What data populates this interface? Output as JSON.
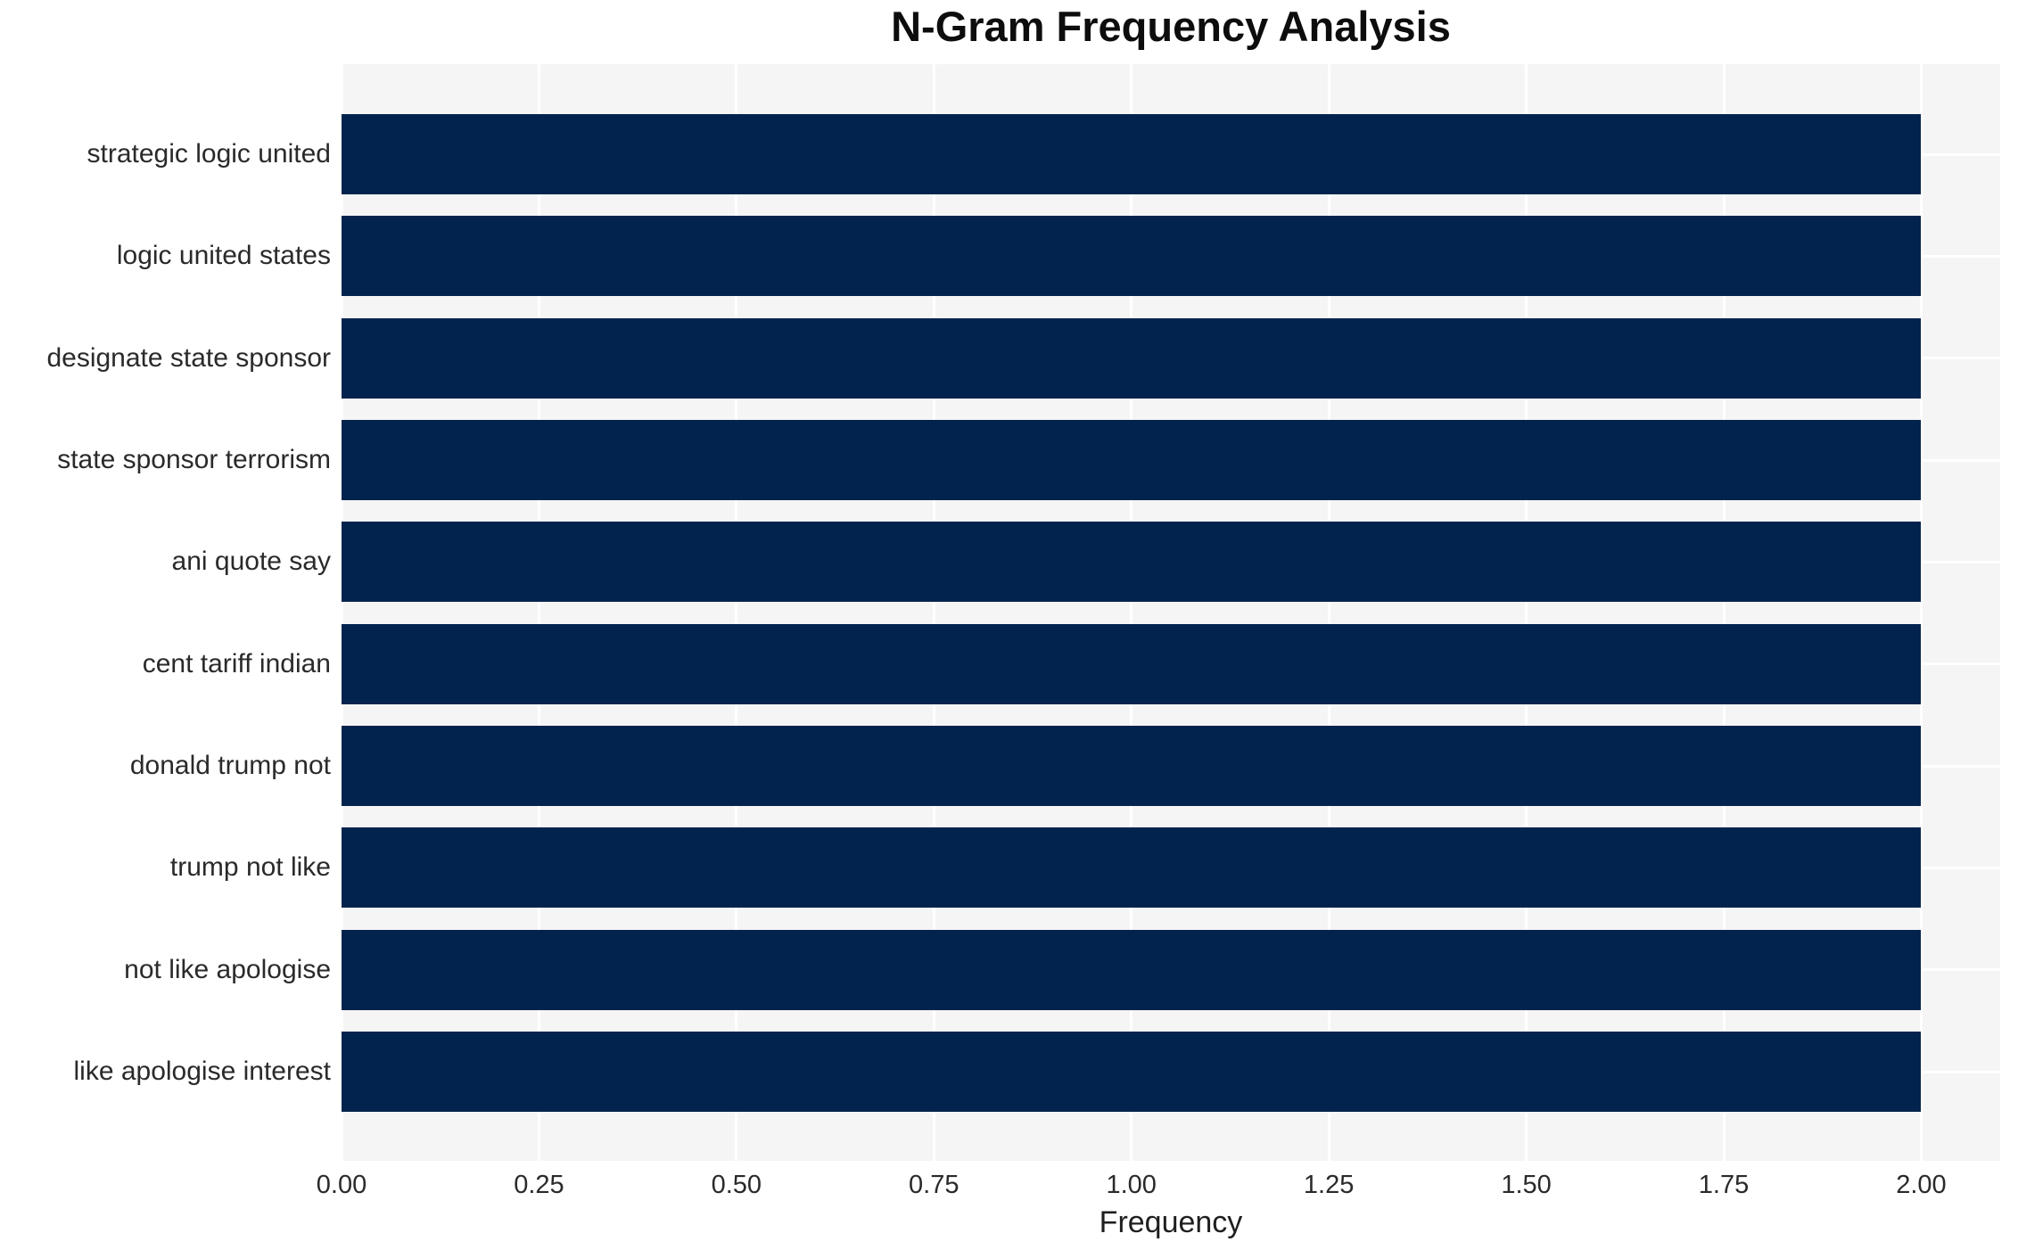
{
  "chart_data": {
    "type": "bar",
    "orientation": "horizontal",
    "title": "N-Gram Frequency Analysis",
    "xlabel": "Frequency",
    "ylabel": "",
    "categories": [
      "strategic logic united",
      "logic united states",
      "designate state sponsor",
      "state sponsor terrorism",
      "ani quote say",
      "cent tariff indian",
      "donald trump not",
      "trump not like",
      "not like apologise",
      "like apologise interest"
    ],
    "values": [
      2,
      2,
      2,
      2,
      2,
      2,
      2,
      2,
      2,
      2
    ],
    "xlim": [
      0,
      2.1
    ],
    "xtick_values": [
      0,
      0.25,
      0.5,
      0.75,
      1.0,
      1.25,
      1.5,
      1.75,
      2.0
    ],
    "xtick_labels": [
      "0.00",
      "0.25",
      "0.50",
      "0.75",
      "1.00",
      "1.25",
      "1.50",
      "1.75",
      "2.00"
    ],
    "legend": "none",
    "grid": {
      "vertical": "at each x tick",
      "horizontal": "at each category center",
      "color": "#ffffff"
    },
    "colors": {
      "bar": "#02234d",
      "plot_background": "#f5f5f6",
      "figure_background": "#ffffff",
      "title_text": "#0d0d0d",
      "tick_text": "#2a2a2a"
    }
  }
}
